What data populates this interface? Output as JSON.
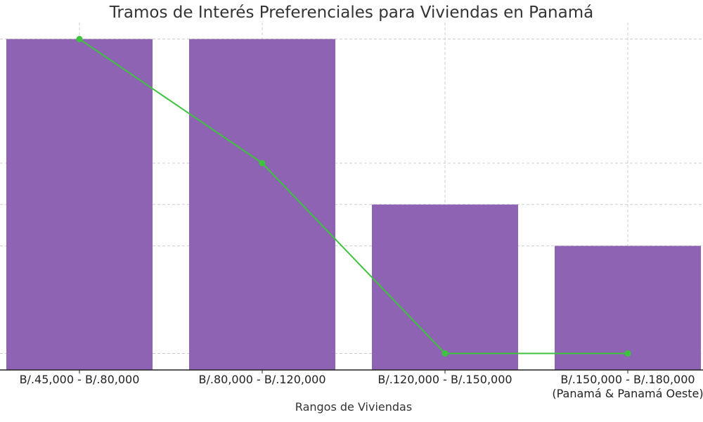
{
  "chart_data": {
    "type": "bar",
    "title": "Tramos de Interés Preferenciales para Viviendas en Panamá",
    "xlabel": "Rangos de Viviendas",
    "ylabel": "",
    "categories": [
      "B/.45,000 - B/.80,000",
      "B/.80,000 - B/.120,000",
      "B/.120,000 - B/.150,000",
      "B/.150,000 - B/.180,000\n(Panamá & Panamá Oeste)"
    ],
    "series": [
      {
        "type": "bar",
        "values": [
          4.0,
          4.0,
          2.0,
          1.5
        ]
      },
      {
        "type": "line",
        "values": [
          4.0,
          2.5,
          0.2,
          0.2
        ]
      }
    ],
    "ylim": [
      0,
      4.2
    ],
    "grid": true,
    "colors": {
      "bar": "#8e63b3",
      "line": "#3ec33e",
      "grid": "#cccccc",
      "axis": "#222222"
    }
  }
}
